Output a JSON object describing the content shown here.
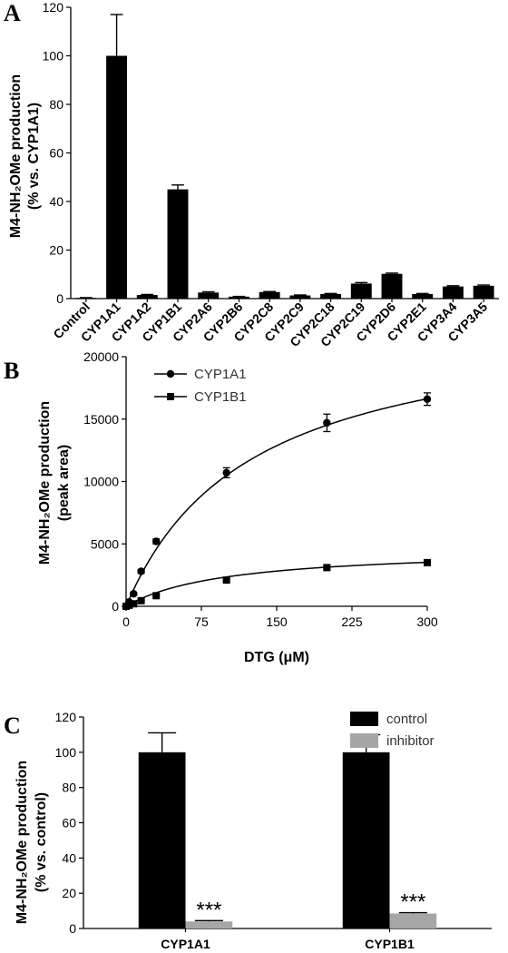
{
  "panels": {
    "A": {
      "letter": "A",
      "ylabel_line1": "M4-NH₂OMe production",
      "ylabel_line2": "(% vs. CYP1A1)"
    },
    "B": {
      "letter": "B",
      "ylabel_line1": "M4-NH₂OMe production",
      "ylabel_line2": "(peak area)",
      "xlabel": "DTG (μM)"
    },
    "C": {
      "letter": "C",
      "ylabel_line1": "M4-NH₂OMe production",
      "ylabel_line2": "(% vs. control)"
    }
  },
  "chart_data": [
    {
      "panel": "A",
      "type": "bar",
      "categories": [
        "Control",
        "CYP1A1",
        "CYP1A2",
        "CYP1B1",
        "CYP2A6",
        "CYP2B6",
        "CYP2C8",
        "CYP2C9",
        "CYP2C18",
        "CYP2C19",
        "CYP2D6",
        "CYP2E1",
        "CYP3A4",
        "CYP3A5"
      ],
      "values": [
        0.3,
        100,
        1.5,
        45,
        2.5,
        0.8,
        2.7,
        1.3,
        1.9,
        6.2,
        10.2,
        1.9,
        5.0,
        5.3
      ],
      "errors": [
        0.1,
        17,
        0.2,
        1.8,
        0.3,
        0.1,
        0.2,
        0.2,
        0.2,
        0.4,
        0.3,
        0.2,
        0.3,
        0.3
      ],
      "ylim": [
        0,
        120
      ],
      "yticks": [
        0,
        20,
        40,
        60,
        80,
        100,
        120
      ],
      "bar_color": "#000000"
    },
    {
      "panel": "B",
      "type": "scatter",
      "xlim": [
        0,
        300
      ],
      "ylim": [
        0,
        20000
      ],
      "xticks": [
        0,
        75,
        150,
        225,
        300
      ],
      "yticks": [
        0,
        5000,
        10000,
        15000,
        20000
      ],
      "legend_position": "top-left",
      "series": [
        {
          "name": "CYP1A1",
          "marker": "circle",
          "x": [
            0,
            3,
            7.5,
            15,
            30,
            100,
            200,
            300
          ],
          "y": [
            0,
            350,
            1000,
            2800,
            5200,
            10700,
            14700,
            16600
          ],
          "errors": [
            0,
            50,
            100,
            150,
            200,
            400,
            700,
            500
          ],
          "fit": {
            "vmax": 23500,
            "km": 124
          }
        },
        {
          "name": "CYP1B1",
          "marker": "square",
          "x": [
            0,
            3,
            7.5,
            15,
            30,
            100,
            200,
            300
          ],
          "y": [
            0,
            80,
            200,
            450,
            850,
            2100,
            3100,
            3500
          ],
          "errors": [
            0,
            20,
            30,
            40,
            60,
            100,
            150,
            150
          ],
          "fit": {
            "vmax": 4700,
            "km": 100
          }
        }
      ]
    },
    {
      "panel": "C",
      "type": "bar",
      "categories": [
        "CYP1A1",
        "CYP1B1"
      ],
      "ylim": [
        0,
        120
      ],
      "yticks": [
        0,
        20,
        40,
        60,
        80,
        100,
        120
      ],
      "legend_position": "top-right",
      "series": [
        {
          "name": "control",
          "color": "#000000",
          "values": [
            100,
            100
          ],
          "errors": [
            11,
            10
          ]
        },
        {
          "name": "inhibitor",
          "color": "#a6a6a6",
          "values": [
            4,
            8.5
          ],
          "errors": [
            0.5,
            0.5
          ]
        }
      ],
      "annotations": [
        "***",
        "***"
      ]
    }
  ]
}
